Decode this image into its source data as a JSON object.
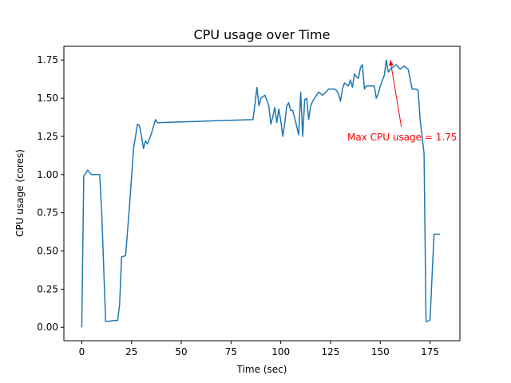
{
  "chart_data": {
    "type": "line",
    "title": "CPU usage over Time",
    "xlabel": "Time (sec)",
    "ylabel": "CPU usage (cores)",
    "xlim": [
      -9,
      190
    ],
    "ylim": [
      -0.0875,
      1.84
    ],
    "xticks": [
      0,
      25,
      50,
      75,
      100,
      125,
      150,
      175
    ],
    "xtick_labels": [
      "0",
      "25",
      "50",
      "75",
      "100",
      "125",
      "150",
      "175"
    ],
    "yticks": [
      0.0,
      0.25,
      0.5,
      0.75,
      1.0,
      1.25,
      1.5,
      1.75
    ],
    "ytick_labels": [
      "0.00",
      "0.25",
      "0.50",
      "0.75",
      "1.00",
      "1.25",
      "1.50",
      "1.75"
    ],
    "grid": false,
    "series": [
      {
        "color": "#1f77b4",
        "x": [
          0,
          1,
          3,
          4,
          5,
          7,
          9,
          10,
          12,
          14,
          16,
          18,
          19,
          20,
          22,
          24,
          26,
          27,
          28,
          29,
          30,
          31,
          32,
          33,
          35,
          37,
          38,
          86,
          87,
          88,
          89,
          90,
          91,
          92,
          94,
          95,
          96,
          97,
          98,
          99,
          100,
          101,
          102,
          103,
          104,
          105,
          106,
          107,
          109,
          110,
          111,
          112,
          113,
          114,
          115,
          116,
          118,
          119,
          120,
          121,
          122,
          124,
          126,
          127,
          128,
          129,
          130,
          131,
          132,
          133,
          134,
          135,
          136,
          137,
          138,
          139,
          140,
          141,
          142,
          143,
          145,
          146,
          147,
          148,
          149,
          150,
          152,
          153,
          154,
          155,
          156,
          157,
          158,
          160,
          162,
          164,
          166,
          168,
          169,
          170,
          172,
          173,
          174,
          175,
          176,
          177,
          178,
          180
        ],
        "y": [
          0.0,
          0.99,
          1.03,
          1.01,
          1.0,
          1.0,
          1.0,
          0.75,
          0.04,
          0.04,
          0.045,
          0.045,
          0.15,
          0.46,
          0.47,
          0.8,
          1.17,
          1.25,
          1.33,
          1.32,
          1.25,
          1.17,
          1.22,
          1.2,
          1.27,
          1.36,
          1.34,
          1.36,
          1.46,
          1.57,
          1.45,
          1.5,
          1.51,
          1.52,
          1.45,
          1.33,
          1.38,
          1.44,
          1.34,
          1.43,
          1.35,
          1.25,
          1.34,
          1.45,
          1.47,
          1.42,
          1.42,
          1.37,
          1.26,
          1.54,
          1.25,
          1.49,
          1.5,
          1.36,
          1.45,
          1.48,
          1.52,
          1.54,
          1.53,
          1.52,
          1.53,
          1.56,
          1.56,
          1.56,
          1.55,
          1.53,
          1.48,
          1.56,
          1.6,
          1.59,
          1.58,
          1.62,
          1.57,
          1.66,
          1.64,
          1.63,
          1.7,
          1.72,
          1.56,
          1.58,
          1.58,
          1.58,
          1.58,
          1.5,
          1.53,
          1.58,
          1.65,
          1.75,
          1.67,
          1.69,
          1.7,
          1.71,
          1.72,
          1.69,
          1.71,
          1.69,
          1.56,
          1.56,
          1.55,
          1.36,
          1.14,
          0.04,
          0.04,
          0.05,
          0.33,
          0.61,
          0.61,
          0.61
        ]
      }
    ],
    "annotation": {
      "text": "Max CPU usage = 1.75",
      "color": "#ff0000",
      "point": [
        155,
        1.75
      ],
      "text_pos": [
        161,
        1.25
      ]
    }
  }
}
